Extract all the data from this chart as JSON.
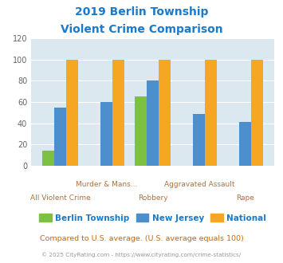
{
  "title_line1": "2019 Berlin Township",
  "title_line2": "Violent Crime Comparison",
  "categories": [
    "All Violent Crime",
    "Murder & Mans...",
    "Robbery",
    "Aggravated Assault",
    "Rape"
  ],
  "berlin": [
    14,
    0,
    65,
    0,
    0
  ],
  "new_jersey": [
    55,
    60,
    80,
    49,
    41
  ],
  "national": [
    100,
    100,
    100,
    100,
    100
  ],
  "color_berlin": "#7dc142",
  "color_nj": "#4d8fcc",
  "color_national": "#f5a623",
  "ylim": [
    0,
    120
  ],
  "yticks": [
    0,
    20,
    40,
    60,
    80,
    100,
    120
  ],
  "bg_color": "#dce8f0",
  "title_color": "#1a7acc",
  "xlabel_color": "#b07040",
  "footnote": "Compared to U.S. average. (U.S. average equals 100)",
  "copyright": "© 2025 CityRating.com - https://www.cityrating.com/crime-statistics/",
  "legend_labels": [
    "Berlin Township",
    "New Jersey",
    "National"
  ],
  "legend_text_color": "#1a7acc"
}
